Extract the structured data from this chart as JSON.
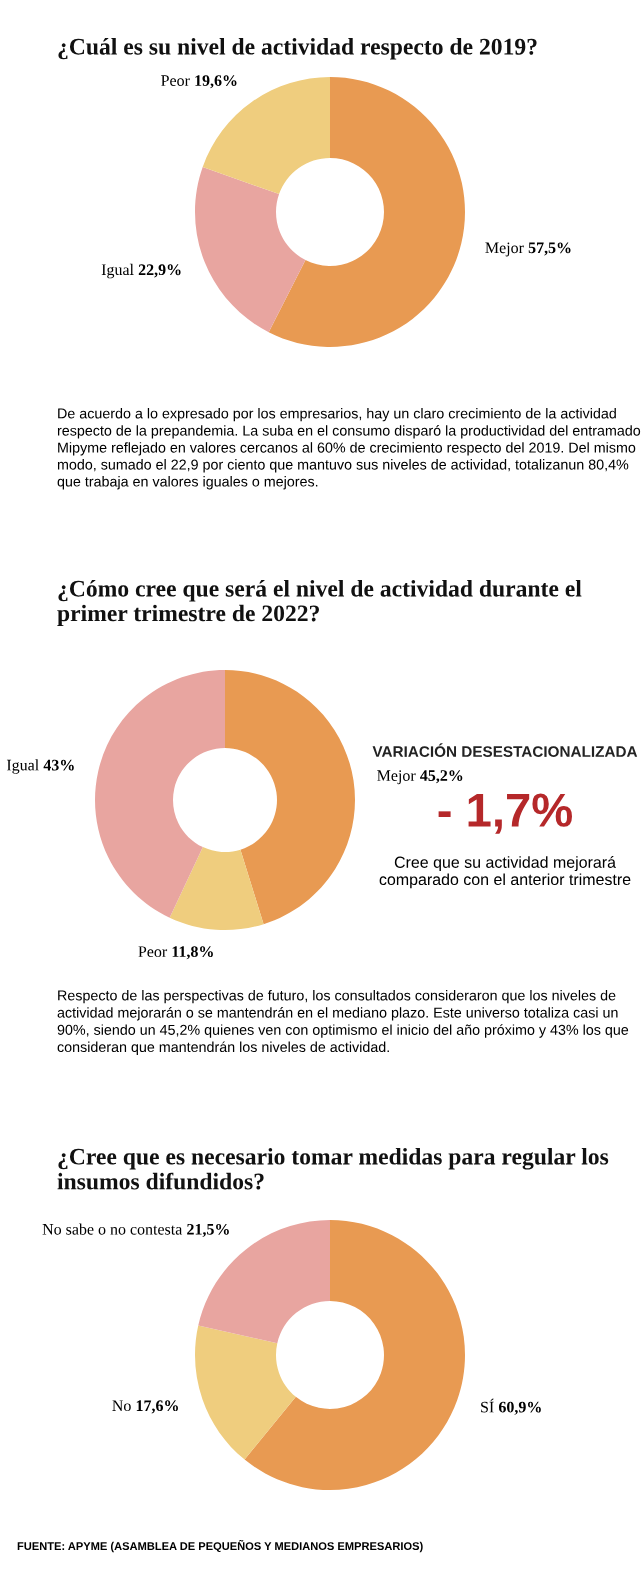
{
  "chart_data": [
    {
      "type": "donut",
      "title": "¿Cuál es su nivel de actividad respecto de 2019?",
      "categories": [
        "Mejor",
        "Igual",
        "Peor"
      ],
      "values": [
        57.5,
        22.9,
        19.6
      ],
      "value_labels": [
        "57,5%",
        "22,9%",
        "19,6%"
      ],
      "colors": [
        "#e89a52",
        "#e8a5a0",
        "#efcd7e"
      ],
      "annotations": [
        "De acuerdo a lo expresado por los empresarios, hay un claro crecimiento de la actividad respecto de la prepandemia. La suba en el consumo disparó la productividad del entramado Mipyme reflejado en valores cercanos al 60% de crecimiento respecto del 2019. Del mismo modo, sumado el 22,9 por ciento que mantuvo sus niveles de actividad, totalizanun 80,4% que trabaja en valores iguales o mejores."
      ]
    },
    {
      "type": "donut",
      "title": "¿Cómo cree que será el nivel de actividad durante el  primer trimestre de 2022?",
      "categories": [
        "Mejor",
        "Peor",
        "Igual"
      ],
      "values": [
        45.2,
        11.8,
        43
      ],
      "value_labels": [
        "45,2%",
        "11,8%",
        "43%"
      ],
      "colors": [
        "#e89a52",
        "#efcd7e",
        "#e8a5a0"
      ],
      "annotations": [
        "Respecto de las perspectivas de futuro, los consultados consideraron que los niveles de actividad mejorarán o se mantendrán en el mediano plazo. Este universo totaliza casi un 90%, siendo un 45,2% quienes ven con optimismo el inicio del año próximo y 43% los que consideran que mantendrán los niveles de actividad."
      ]
    },
    {
      "type": "other",
      "title": "VARIACIÓN DESESTACIONALIZADA",
      "annotations": [
        "- 1,7%",
        "Cree que su actividad mejorará comparado con el anterior trimestre"
      ]
    },
    {
      "type": "donut",
      "title": "¿Cree que es necesario tomar medidas para regular los  insumos difundidos?",
      "categories": [
        "SÍ",
        "No",
        "No sabe o no contesta"
      ],
      "values": [
        60.9,
        17.6,
        21.5
      ],
      "value_labels": [
        "60,9%",
        "17,6%",
        "21,5%"
      ],
      "colors": [
        "#e89a52",
        "#efcd7e",
        "#e8a5a0"
      ],
      "annotations": [
        "FUENTE: APYME (ASAMBLEA DE PEQUEÑOS Y MEDIANOS EMPRESARIOS)"
      ]
    }
  ]
}
